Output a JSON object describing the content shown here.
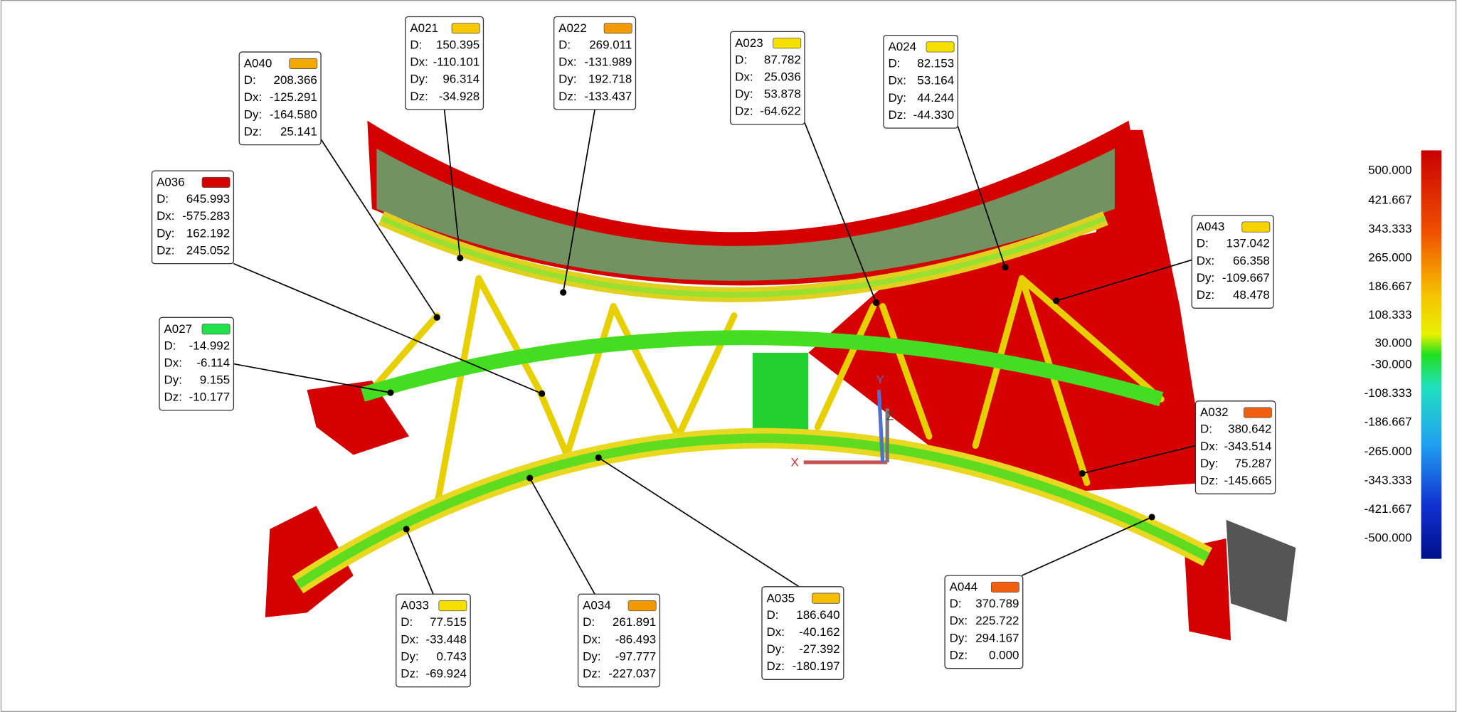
{
  "viewer": {
    "field_labels": [
      "D:",
      "Dx:",
      "Dy:",
      "Dz:"
    ],
    "callouts": [
      {
        "label": "A021",
        "color": "#f5c800",
        "values": [
          "150.395",
          "-110.101",
          "96.314",
          "-34.928"
        ]
      },
      {
        "label": "A022",
        "color": "#f29a00",
        "values": [
          "269.011",
          "-131.989",
          "192.718",
          "-133.437"
        ]
      },
      {
        "label": "A040",
        "color": "#f2a900",
        "values": [
          "208.366",
          "-125.291",
          "-164.580",
          "25.141"
        ]
      },
      {
        "label": "A036",
        "color": "#d40000",
        "values": [
          "645.993",
          "-575.283",
          "162.192",
          "245.052"
        ]
      },
      {
        "label": "A027",
        "color": "#22e24a",
        "values": [
          "-14.992",
          "-6.114",
          "9.155",
          "-10.177"
        ]
      },
      {
        "label": "A023",
        "color": "#f5e000",
        "values": [
          "87.782",
          "25.036",
          "53.878",
          "-64.622"
        ]
      },
      {
        "label": "A024",
        "color": "#f5e000",
        "values": [
          "82.153",
          "53.164",
          "44.244",
          "-44.330"
        ]
      },
      {
        "label": "A043",
        "color": "#f5d200",
        "values": [
          "137.042",
          "66.358",
          "-109.667",
          "48.478"
        ]
      },
      {
        "label": "A032",
        "color": "#f06010",
        "values": [
          "380.642",
          "-343.514",
          "75.287",
          "-145.665"
        ]
      },
      {
        "label": "A044",
        "color": "#f06010",
        "values": [
          "370.789",
          "225.722",
          "294.167",
          "0.000"
        ]
      },
      {
        "label": "A033",
        "color": "#f5e000",
        "values": [
          "77.515",
          "-33.448",
          "0.743",
          "-69.924"
        ]
      },
      {
        "label": "A034",
        "color": "#f29a00",
        "values": [
          "261.891",
          "-86.493",
          "-97.777",
          "-227.037"
        ]
      },
      {
        "label": "A035",
        "color": "#f5be00",
        "values": [
          "186.640",
          "-40.162",
          "-27.392",
          "-180.197"
        ]
      }
    ],
    "color_scale": [
      "500.000",
      "421.667",
      "343.333",
      "265.000",
      "186.667",
      "108.333",
      "30.000",
      "-30.000",
      "-108.333",
      "-186.667",
      "-265.000",
      "-343.333",
      "-421.667",
      "-500.000"
    ],
    "axes": [
      "X",
      "Y",
      "Z"
    ]
  }
}
